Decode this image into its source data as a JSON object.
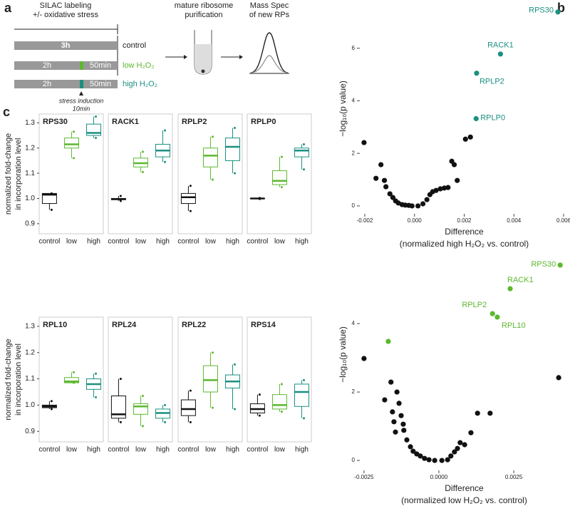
{
  "panel_letters": [
    "a",
    "b",
    "c"
  ],
  "panel_a": {
    "labeling": [
      "SILAC labeling",
      "+/- oxidative stress"
    ],
    "control": {
      "duration": "3h",
      "label": "control"
    },
    "low": {
      "pre": "2h",
      "post": "50min",
      "label": "low H₂O₂"
    },
    "high": {
      "pre": "2h",
      "post": "50min",
      "label": "high H₂O₂"
    },
    "stress": [
      "stress induction",
      "10min"
    ],
    "purification": [
      "mature ribosome",
      "purification"
    ],
    "mass_spec": [
      "Mass Spec",
      "of new RPs"
    ]
  },
  "chart_data": [
    {
      "type": "scatter",
      "y_label": "−log₁₀(p value)",
      "x_label": [
        "Difference",
        "(normalized high H₂O₂ vs. control)"
      ],
      "xlim": [
        -0.0022,
        0.0062
      ],
      "ylim": [
        -0.3,
        7.7
      ],
      "xticks": [
        -0.002,
        {
          "value": 0,
          "label": "0.000"
        },
        0.002,
        0.004,
        0.006
      ],
      "yticks": [
        0,
        2,
        4,
        6
      ],
      "series": [
        {
          "color": "#111111",
          "x": [
            -0.00203,
            -0.00155,
            -0.00135,
            -0.00121,
            -0.00115,
            -0.00099,
            -0.00087,
            -0.00076,
            -0.00065,
            -0.0005,
            -0.00037,
            -0.00023,
            -0.0001,
            0.00014,
            0.00034,
            0.0005,
            0.00062,
            0.00073,
            0.00087,
            0.00104,
            0.0012,
            0.00135,
            0.0015,
            0.0016,
            0.00172,
            0.00205,
            0.00225
          ],
          "y": [
            2.41,
            1.05,
            1.57,
            0.97,
            0.73,
            0.46,
            0.32,
            0.19,
            0.11,
            0.05,
            0.03,
            0.02,
            0,
            0,
            0.08,
            0.24,
            0.43,
            0.54,
            0.59,
            0.65,
            0.68,
            0.7,
            1.7,
            1.57,
            0.97,
            2.54,
            2.62
          ]
        },
        {
          "color": "#1a9080",
          "x": [
            0.00577,
            0.00346,
            0.0025,
            0.00248
          ],
          "y": [
            7.38,
            5.78,
            5.05,
            3.32
          ],
          "point_labels": [
            "RPS30",
            "RACK1",
            "RPLP2",
            "RPLP0"
          ]
        }
      ]
    },
    {
      "type": "scatter",
      "y_label": "−log₁₀(p value)",
      "x_label": [
        "Difference",
        "(normalized low H₂O₂ vs. control)"
      ],
      "xlim": [
        -0.00264,
        0.00433
      ],
      "ylim": [
        -0.29,
        6.48
      ],
      "xticks": [
        -0.0025,
        {
          "value": 0,
          "label": "0.0000"
        },
        0.0025
      ],
      "yticks": [
        0,
        2,
        4
      ],
      "series": [
        {
          "color": "#111111",
          "x": [
            -0.0025,
            -0.00181,
            -0.0016,
            -0.00155,
            -0.0015,
            -0.00145,
            -0.0014,
            -0.00133,
            -0.00126,
            -0.00119,
            -0.00117,
            -0.00107,
            -0.00095,
            -0.00086,
            -0.00074,
            -0.00062,
            -0.00048,
            -0.00033,
            -0.00014,
            0.0001,
            0.00029,
            0.0004,
            0.00052,
            0.00062,
            0.00071,
            0.00086,
            0.00107,
            0.00129,
            0.00171,
            0.004
          ],
          "y": [
            2.98,
            1.77,
            2.29,
            1.42,
            1.13,
            0.83,
            2.0,
            1.67,
            1.31,
            1.06,
            0.88,
            0.6,
            0.4,
            0.27,
            0.19,
            0.13,
            0.06,
            0.02,
            0,
            0,
            0.02,
            0.13,
            0.25,
            0.35,
            0.52,
            0.46,
            0.81,
            1.38,
            1.38,
            2.42
          ]
        },
        {
          "color": "#5cb82e",
          "x": [
            0.00405,
            0.00238,
            0.00179,
            0.00195,
            -0.00169
          ],
          "y": [
            5.71,
            5.02,
            4.29,
            4.19,
            3.48
          ],
          "point_labels": [
            "RPS30",
            "RACK1",
            "RPLP2",
            "RPL10",
            null
          ]
        }
      ]
    },
    {
      "type": "box",
      "title": "RPS30",
      "y_label": [
        "normalized fold-change",
        "in incorporation level"
      ],
      "categories": [
        "control",
        "low",
        "high"
      ],
      "colors": [
        "#111111",
        "#5cb82e",
        "#1a9080"
      ],
      "ylim": [
        0.86,
        1.335
      ],
      "yticks": [
        {
          "value": 0.9,
          "label": "0.9"
        },
        {
          "value": 1,
          "label": "1.0"
        },
        1.1,
        1.2,
        1.3
      ],
      "boxes": [
        {
          "min": 0.955,
          "q1": 0.98,
          "median": 1.015,
          "q3": 1.02,
          "max": 1.02
        },
        {
          "min": 1.16,
          "q1": 1.2,
          "median": 1.215,
          "q3": 1.24,
          "max": 1.265
        },
        {
          "min": 1.24,
          "q1": 1.25,
          "median": 1.26,
          "q3": 1.295,
          "max": 1.325
        }
      ]
    },
    {
      "type": "box",
      "title": "RACK1",
      "categories": [
        "control",
        "low",
        "high"
      ],
      "colors": [
        "#111111",
        "#5cb82e",
        "#1a9080"
      ],
      "ylim": [
        0.86,
        1.335
      ],
      "boxes": [
        {
          "min": 0.99,
          "q1": 0.995,
          "median": 0.998,
          "q3": 1.0,
          "max": 1.01
        },
        {
          "min": 1.105,
          "q1": 1.125,
          "median": 1.14,
          "q3": 1.16,
          "max": 1.185
        },
        {
          "min": 1.145,
          "q1": 1.165,
          "median": 1.19,
          "q3": 1.215,
          "max": 1.27
        }
      ]
    },
    {
      "type": "box",
      "title": "RPLP2",
      "categories": [
        "control",
        "low",
        "high"
      ],
      "colors": [
        "#111111",
        "#5cb82e",
        "#1a9080"
      ],
      "ylim": [
        0.86,
        1.335
      ],
      "boxes": [
        {
          "min": 0.95,
          "q1": 0.98,
          "median": 1.005,
          "q3": 1.02,
          "max": 1.05
        },
        {
          "min": 1.075,
          "q1": 1.125,
          "median": 1.17,
          "q3": 1.2,
          "max": 1.245
        },
        {
          "min": 1.1,
          "q1": 1.15,
          "median": 1.205,
          "q3": 1.24,
          "max": 1.28
        }
      ]
    },
    {
      "type": "box",
      "title": "RPLP0",
      "categories": [
        "control",
        "low",
        "high"
      ],
      "colors": [
        "#111111",
        "#5cb82e",
        "#1a9080"
      ],
      "ylim": [
        0.86,
        1.335
      ],
      "boxes": [
        {
          "min": 0.998,
          "q1": 0.999,
          "median": 1.0,
          "q3": 1.001,
          "max": 1.002
        },
        {
          "min": 1.045,
          "q1": 1.055,
          "median": 1.07,
          "q3": 1.11,
          "max": 1.165
        },
        {
          "min": 1.115,
          "q1": 1.165,
          "median": 1.19,
          "q3": 1.2,
          "max": 1.215
        }
      ]
    },
    {
      "type": "box",
      "title": "RPL10",
      "y_label": [
        "normalized fold-change",
        "in incorporation level"
      ],
      "categories": [
        "control",
        "low",
        "high"
      ],
      "colors": [
        "#111111",
        "#5cb82e",
        "#1a9080"
      ],
      "ylim": [
        0.86,
        1.335
      ],
      "yticks": [
        {
          "value": 0.9,
          "label": "0.9"
        },
        {
          "value": 1,
          "label": "1.0"
        },
        1.1,
        1.2,
        1.3
      ],
      "boxes": [
        {
          "min": 0.985,
          "q1": 0.99,
          "median": 0.995,
          "q3": 1.0,
          "max": 1.015
        },
        {
          "min": 1.085,
          "q1": 1.085,
          "median": 1.09,
          "q3": 1.105,
          "max": 1.125
        },
        {
          "min": 1.03,
          "q1": 1.06,
          "median": 1.08,
          "q3": 1.1,
          "max": 1.12
        }
      ]
    },
    {
      "type": "box",
      "title": "RPL24",
      "categories": [
        "control",
        "low",
        "high"
      ],
      "colors": [
        "#111111",
        "#5cb82e",
        "#1a9080"
      ],
      "ylim": [
        0.86,
        1.335
      ],
      "boxes": [
        {
          "min": 0.935,
          "q1": 0.95,
          "median": 0.965,
          "q3": 1.035,
          "max": 1.1
        },
        {
          "min": 0.92,
          "q1": 0.965,
          "median": 0.995,
          "q3": 1.005,
          "max": 1.035
        },
        {
          "min": 0.935,
          "q1": 0.95,
          "median": 0.97,
          "q3": 0.985,
          "max": 1.0
        }
      ]
    },
    {
      "type": "box",
      "title": "RPL22",
      "categories": [
        "control",
        "low",
        "high"
      ],
      "colors": [
        "#111111",
        "#5cb82e",
        "#1a9080"
      ],
      "ylim": [
        0.86,
        1.335
      ],
      "boxes": [
        {
          "min": 0.935,
          "q1": 0.96,
          "median": 0.985,
          "q3": 1.02,
          "max": 1.055
        },
        {
          "min": 0.99,
          "q1": 1.05,
          "median": 1.095,
          "q3": 1.15,
          "max": 1.2
        },
        {
          "min": 0.985,
          "q1": 1.065,
          "median": 1.09,
          "q3": 1.115,
          "max": 1.155
        }
      ]
    },
    {
      "type": "box",
      "title": "RPS14",
      "categories": [
        "control",
        "low",
        "high"
      ],
      "colors": [
        "#111111",
        "#5cb82e",
        "#1a9080"
      ],
      "ylim": [
        0.86,
        1.335
      ],
      "boxes": [
        {
          "min": 0.96,
          "q1": 0.97,
          "median": 0.985,
          "q3": 1.005,
          "max": 1.04
        },
        {
          "min": 0.975,
          "q1": 0.985,
          "median": 1.0,
          "q3": 1.04,
          "max": 1.08
        },
        {
          "min": 0.95,
          "q1": 0.995,
          "median": 1.05,
          "q3": 1.08,
          "max": 1.095
        }
      ]
    }
  ]
}
